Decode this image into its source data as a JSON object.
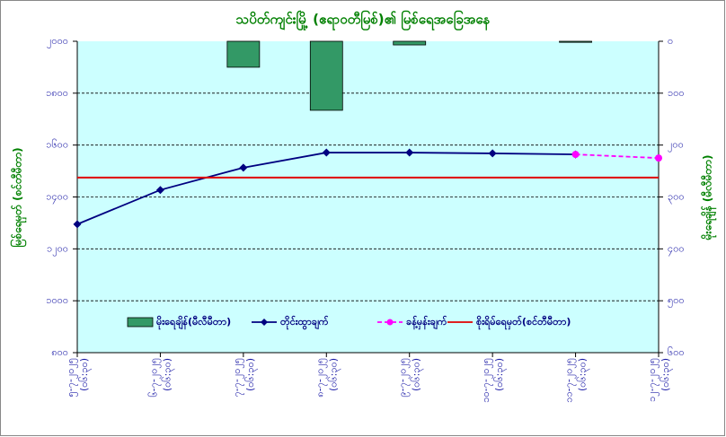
{
  "chart_data": {
    "type": "bar-line",
    "title": "သပိတ်ကျင်းမြို့ (ဧရာဝတီမြစ်)၏ မြစ်ရေအခြေအနေ",
    "y_label": "မြစ်ရေမှတ် (စင်တီမီတာ)",
    "y2_label": "မိုးရေချိန် (မီလီမီတာ)",
    "categories": [
      "၅-၇-၂၀၂၅",
      "၆-၇-၂၀၂၅",
      "၇-၇-၂၀၂၅",
      "၈-၇-၂၀၂၅",
      "၉-၇-၂၀၂၅",
      "၁၀-၇-၂၀၂၅",
      "၁၁-၇-၂၀၂၅",
      "၁၂-၇-၂၀၂၅"
    ],
    "category_times": [
      "(၀၆:၃၀)",
      "(၀၆:၃၀)",
      "(၀၆:၃၀)",
      "(၀၆:၃၀)",
      "(၀၆:၃၀)",
      "(၀၆:၃၀)",
      "(၀၆:၃၀)",
      "(၀၆:၃၀)"
    ],
    "ylim": [
      800,
      2000
    ],
    "yticks": [
      {
        "value": 800,
        "label": "၈၀၀"
      },
      {
        "value": 1000,
        "label": "၁၀၀၀"
      },
      {
        "value": 1200,
        "label": "၁၂၀၀"
      },
      {
        "value": 1400,
        "label": "၁၄၀၀"
      },
      {
        "value": 1600,
        "label": "၁၆၀၀"
      },
      {
        "value": 1800,
        "label": "၁၈၀၀"
      },
      {
        "value": 2000,
        "label": "၂၀၀၀"
      }
    ],
    "y2lim": [
      0,
      600
    ],
    "y2_reversed": true,
    "y2ticks": [
      {
        "value": 0,
        "label": "၀"
      },
      {
        "value": 100,
        "label": "၁၀၀"
      },
      {
        "value": 200,
        "label": "၂၀၀"
      },
      {
        "value": 300,
        "label": "၃၀၀"
      },
      {
        "value": 400,
        "label": "၄၀၀"
      },
      {
        "value": 500,
        "label": "၅၀၀"
      },
      {
        "value": 600,
        "label": "၆၀၀"
      }
    ],
    "grid": true,
    "series": [
      {
        "name": "မိုးရေချိန်(မီလီမီတာ)",
        "type": "bar",
        "axis": "y2",
        "color": "#339966",
        "values": [
          0,
          0,
          50,
          133,
          7,
          0,
          2,
          0
        ]
      },
      {
        "name": "တိုင်းထွာချက်",
        "type": "line",
        "marker": "diamond",
        "color": "#000080",
        "values": [
          1295,
          1427,
          1513,
          1571,
          1571,
          1568,
          1564,
          null
        ]
      },
      {
        "name": "ခန့်မှန်းချက်",
        "type": "line",
        "marker": "circle",
        "dashed": true,
        "color": "#ff00ff",
        "values": [
          null,
          null,
          null,
          null,
          null,
          null,
          1564,
          1550
        ]
      },
      {
        "name": "စိုးရိမ်ရေမှတ်(စင်တီမီတာ)",
        "type": "hline",
        "color": "#e00000",
        "value": 1475
      }
    ]
  }
}
